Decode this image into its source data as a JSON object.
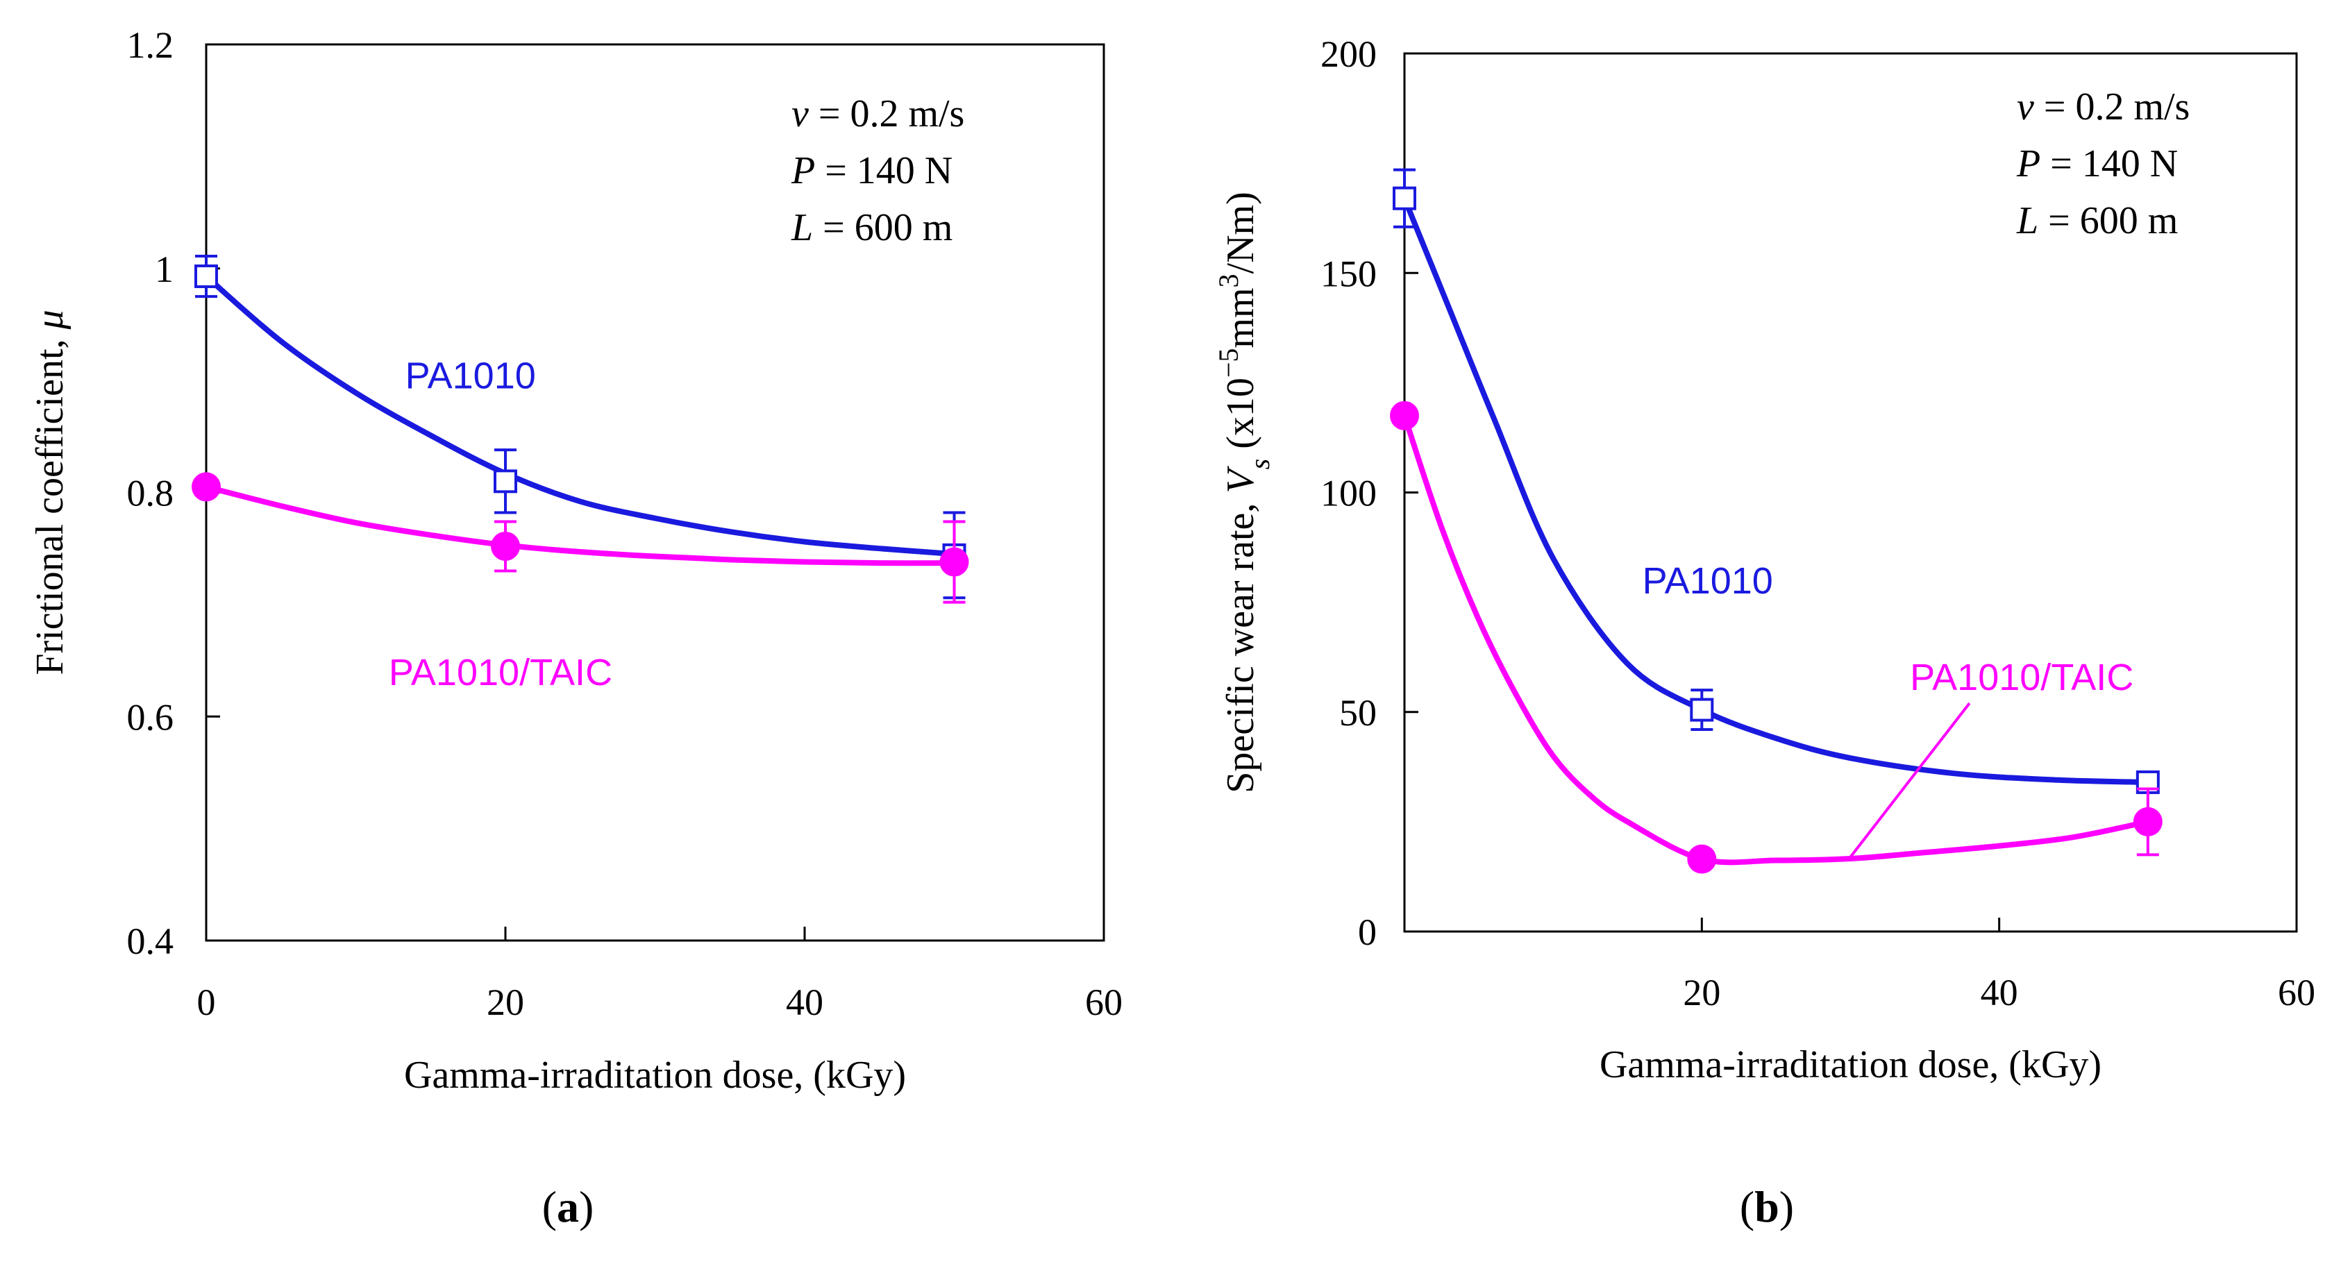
{
  "colors": {
    "pa1010": "#1a1adf",
    "pa1010_taic": "#ff00ff",
    "axis": "#000000"
  },
  "chart_data": [
    {
      "type": "line",
      "panel_label": "(a)",
      "panel_letter": "a",
      "xlabel": "Gamma-irraditation dose, (kGy)",
      "ylabel": "Frictional coefficient, ",
      "ylabel_symbol": "μ",
      "xlim": [
        0,
        60
      ],
      "ylim": [
        0.4,
        1.2
      ],
      "xticks": [
        0,
        20,
        40,
        60
      ],
      "xtick_labels": [
        "0",
        "20",
        "40",
        "60"
      ],
      "yticks": [
        0.4,
        0.6,
        0.8,
        1.0,
        1.2
      ],
      "ytick_labels": [
        "0.4",
        "0.6",
        "0.8",
        "1",
        "1.2"
      ],
      "conditions": [
        {
          "sym": "v",
          "text": " = 0.2 m/s"
        },
        {
          "sym": "P",
          "text": " = 140 N"
        },
        {
          "sym": "L",
          "text": " = 600 m"
        }
      ],
      "series": [
        {
          "name": "PA1010",
          "marker": "open-square",
          "x": [
            0,
            20,
            50
          ],
          "y": [
            0.993,
            0.81,
            0.744
          ],
          "err": [
            0.018,
            0.028,
            0.038
          ],
          "curve_x": [
            0,
            5,
            10,
            15,
            20,
            25,
            30,
            35,
            40,
            45,
            50
          ],
          "curve_y": [
            0.993,
            0.935,
            0.889,
            0.851,
            0.817,
            0.792,
            0.777,
            0.765,
            0.756,
            0.75,
            0.745
          ],
          "label_pos": [
            13.3,
            0.893
          ]
        },
        {
          "name": "PA1010/TAIC",
          "marker": "filled-circle",
          "x": [
            0,
            20,
            50
          ],
          "y": [
            0.805,
            0.752,
            0.738
          ],
          "err": [
            0.0,
            0.022,
            0.036
          ],
          "curve_x": [
            0,
            5,
            10,
            15,
            20,
            25,
            30,
            35,
            40,
            45,
            50
          ],
          "curve_y": [
            0.805,
            0.788,
            0.773,
            0.762,
            0.753,
            0.747,
            0.743,
            0.74,
            0.738,
            0.737,
            0.737
          ],
          "label_pos": [
            12.2,
            0.628
          ]
        }
      ]
    },
    {
      "type": "line",
      "panel_label": "(b)",
      "panel_letter": "b",
      "xlabel": "Gamma-irraditation dose, (kGy)",
      "ylabel": "Specific wear rate, ",
      "ylabel_symbol": "V",
      "ylabel_sub": "s",
      "ylabel_unit": " (x10",
      "ylabel_sup1": "−5",
      "ylabel_mid": "mm",
      "ylabel_sup2": "3",
      "ylabel_end": "/Nm)",
      "xlim": [
        0,
        60
      ],
      "ylim": [
        0,
        200
      ],
      "xticks": [
        20,
        40,
        60
      ],
      "xtick_labels": [
        "20",
        "40",
        "60"
      ],
      "yticks": [
        0,
        50,
        100,
        150,
        200
      ],
      "ytick_labels": [
        "0",
        "50",
        "100",
        "150",
        "200"
      ],
      "conditions": [
        {
          "sym": "v",
          "text": " = 0.2 m/s"
        },
        {
          "sym": "P",
          "text": " = 140 N"
        },
        {
          "sym": "L",
          "text": " = 600 m"
        }
      ],
      "series": [
        {
          "name": "PA1010",
          "marker": "open-square",
          "x": [
            0,
            20,
            50
          ],
          "y": [
            167,
            50.5,
            34
          ],
          "err": [
            6.5,
            4.5,
            2.0
          ],
          "curve_x": [
            0,
            3,
            6,
            10,
            15,
            20,
            25,
            30,
            37,
            44,
            50
          ],
          "curve_y": [
            167,
            142,
            117,
            85,
            61,
            50.5,
            44,
            39.5,
            36,
            34.5,
            34
          ],
          "label_pos": [
            16,
            77
          ]
        },
        {
          "name": "PA1010/TAIC",
          "marker": "filled-circle",
          "x": [
            0,
            20,
            50
          ],
          "y": [
            117.5,
            16.5,
            25
          ],
          "err": [
            0.0,
            0.0,
            7.5
          ],
          "curve_x": [
            0,
            2.5,
            5,
            7.5,
            10,
            12.5,
            15,
            20,
            25,
            30,
            35,
            40,
            45,
            50
          ],
          "curve_y": [
            117.5,
            92,
            71,
            54,
            40,
            31,
            25,
            16.5,
            16.2,
            16.6,
            18,
            19.5,
            21.5,
            25
          ],
          "label_pos": [
            34,
            55
          ],
          "leader": [
            [
              30,
              17
            ],
            [
              38,
              52
            ]
          ]
        }
      ]
    }
  ]
}
